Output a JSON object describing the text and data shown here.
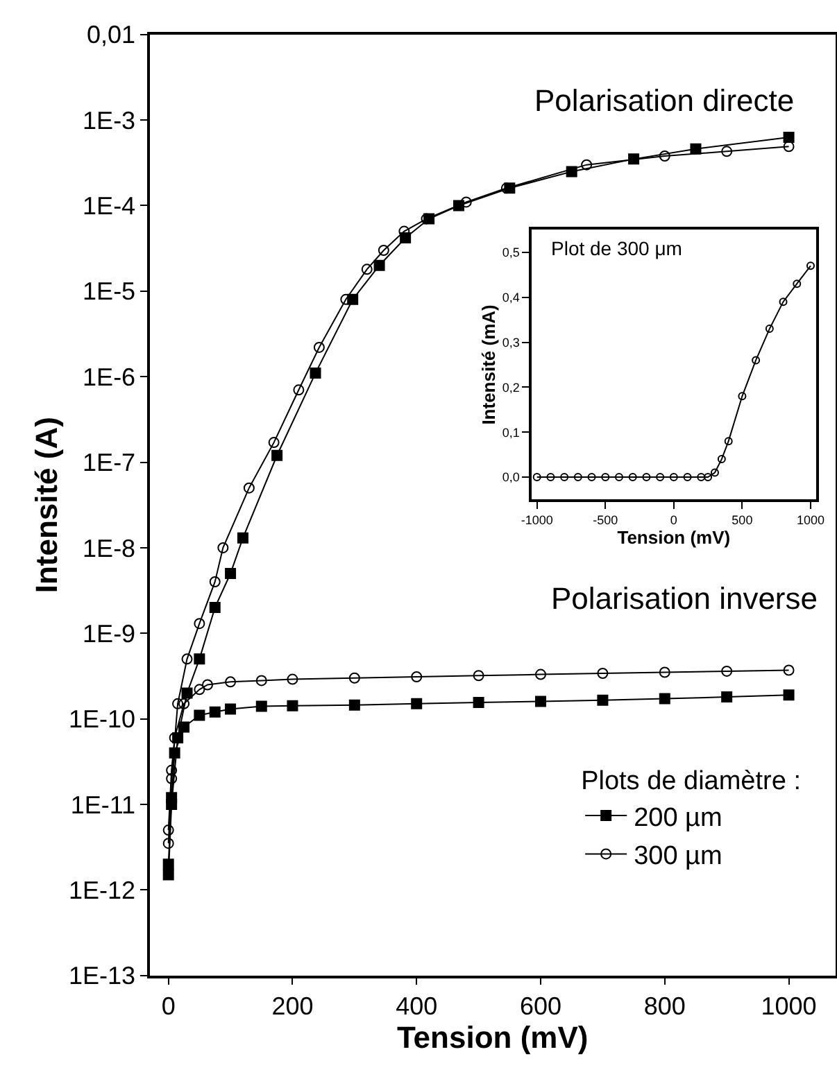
{
  "chart_data": [
    {
      "type": "line",
      "xlabel": "Tension (mV)",
      "ylabel": "Intensité (A)",
      "legend_title": "Plots de diamètre :",
      "legend": "bottom right",
      "log": "y",
      "annotations": [
        "Polarisation directe",
        "Polarisation inverse"
      ],
      "xlim": [
        -30,
        1075
      ],
      "xticks": [
        0,
        200,
        400,
        600,
        800,
        1000
      ],
      "ylim": [
        1e-13,
        0.01
      ],
      "yticks": [
        {
          "value": 1e-13,
          "label": "1E-13"
        },
        {
          "value": 1e-12,
          "label": "1E-12"
        },
        {
          "value": 1e-11,
          "label": "1E-11"
        },
        {
          "value": 1e-10,
          "label": "1E-10"
        },
        {
          "value": 1e-09,
          "label": "1E-9"
        },
        {
          "value": 1e-08,
          "label": "1E-8"
        },
        {
          "value": 1e-07,
          "label": "1E-7"
        },
        {
          "value": 1e-06,
          "label": "1E-6"
        },
        {
          "value": 1e-05,
          "label": "1E-5"
        },
        {
          "value": 0.0001,
          "label": "1E-4"
        },
        {
          "value": 0.001,
          "label": "1E-3"
        },
        {
          "value": 0.01,
          "label": "0,01"
        }
      ],
      "series": [
        {
          "name": "200 µm",
          "color": "#000000",
          "marker": "square",
          "x": [
            0,
            5,
            15,
            30,
            50,
            75,
            100,
            120,
            175,
            237,
            297,
            340,
            382,
            420,
            468,
            550,
            650,
            750,
            850,
            1000,
            null,
            0,
            5,
            10,
            25,
            50,
            75,
            100,
            150,
            200,
            300,
            400,
            500,
            600,
            700,
            800,
            900,
            1000
          ],
          "values": [
            1.5e-12,
            1e-11,
            6e-11,
            2e-10,
            5e-10,
            2e-09,
            5e-09,
            1.3e-08,
            1.2e-07,
            1.1e-06,
            8e-06,
            2e-05,
            4.2e-05,
            7e-05,
            0.0001,
            0.00016,
            0.00025,
            0.00035,
            0.00046,
            0.00063,
            null,
            2e-12,
            1.2e-11,
            4e-11,
            8e-11,
            1.1e-10,
            1.2e-10,
            1.3e-10,
            1.4e-10,
            1.42e-10,
            1.45e-10,
            1.5e-10,
            1.55e-10,
            1.6e-10,
            1.65e-10,
            1.72e-10,
            1.8e-10,
            1.9e-10
          ]
        },
        {
          "name": "300 µm",
          "color": "#000000",
          "marker": "circle",
          "x": [
            0,
            5,
            15,
            30,
            50,
            75,
            88,
            130,
            170,
            210,
            243,
            286,
            320,
            347,
            380,
            416,
            480,
            545,
            674,
            800,
            900,
            1000,
            null,
            0,
            5,
            10,
            25,
            50,
            63,
            100,
            150,
            200,
            300,
            400,
            500,
            600,
            700,
            800,
            900,
            1000
          ],
          "values": [
            3.5e-12,
            2e-11,
            1.5e-10,
            5e-10,
            1.3e-09,
            4e-09,
            1e-08,
            5e-08,
            1.7e-07,
            7e-07,
            2.2e-06,
            8e-06,
            1.8e-05,
            3e-05,
            5e-05,
            7e-05,
            0.00011,
            0.00016,
            0.0003,
            0.00038,
            0.00043,
            0.00049,
            null,
            5e-12,
            2.5e-11,
            6e-11,
            1.5e-10,
            2.2e-10,
            2.5e-10,
            2.7e-10,
            2.8e-10,
            2.9e-10,
            3e-10,
            3.1e-10,
            3.2e-10,
            3.3e-10,
            3.4e-10,
            3.5e-10,
            3.6e-10,
            3.7e-10
          ]
        }
      ]
    },
    {
      "type": "line",
      "xlabel": "Tension (mV)",
      "ylabel": "Intensité (mA)",
      "annotations": [
        "Plot de 300 μm"
      ],
      "xlim": [
        -1040,
        1040
      ],
      "xticks": [
        -1000,
        -500,
        0,
        500,
        1000
      ],
      "ylim": [
        -0.05,
        0.55
      ],
      "yticks": [
        {
          "value": 0,
          "label": "0,0"
        },
        {
          "value": 0.1,
          "label": "0,1"
        },
        {
          "value": 0.2,
          "label": "0,2"
        },
        {
          "value": 0.3,
          "label": "0,3"
        },
        {
          "value": 0.4,
          "label": "0,4"
        },
        {
          "value": 0.5,
          "label": "0,5"
        }
      ],
      "series": [
        {
          "color": "#000000",
          "marker": "circle",
          "x": [
            -1000,
            -900,
            -800,
            -700,
            -600,
            -500,
            -400,
            -300,
            -200,
            -100,
            0,
            100,
            200,
            250,
            300,
            350,
            400,
            500,
            600,
            700,
            800,
            900,
            1000
          ],
          "values": [
            0,
            0,
            0,
            0,
            0,
            0,
            0,
            0,
            0,
            0,
            0,
            0,
            0,
            0,
            0.01,
            0.04,
            0.08,
            0.18,
            0.26,
            0.33,
            0.39,
            0.43,
            0.47
          ]
        }
      ]
    }
  ]
}
